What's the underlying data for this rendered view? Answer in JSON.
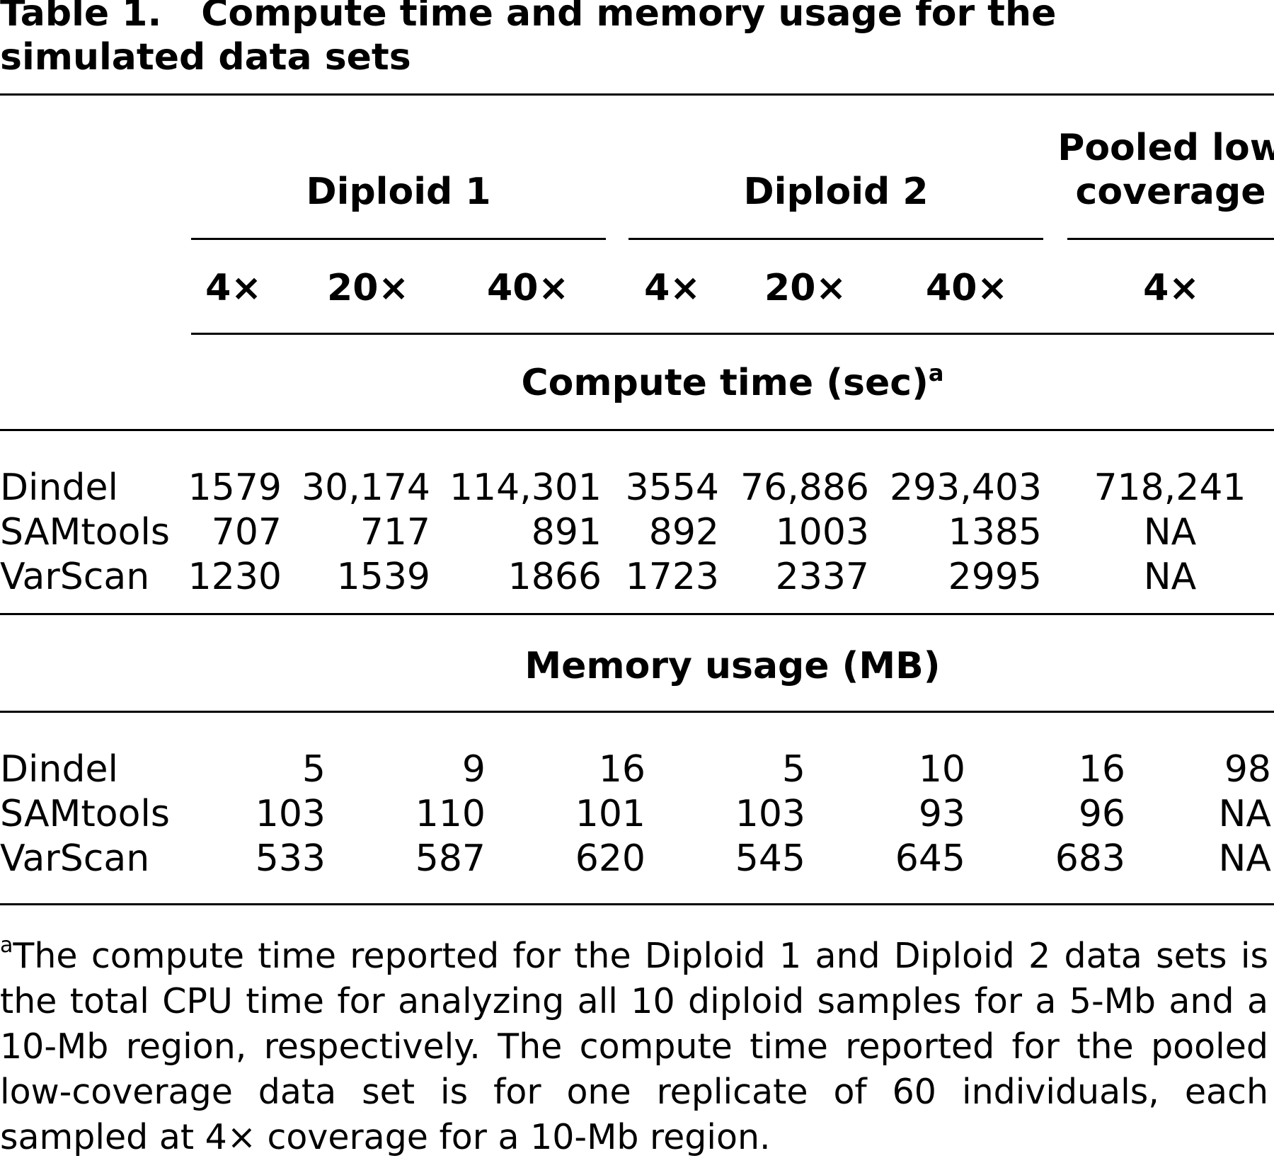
{
  "table": {
    "label": "Table 1.",
    "caption": "Compute time and memory usage for the simulated data sets",
    "group_headers": [
      "Diploid 1",
      "Diploid 2",
      "Pooled low coverage"
    ],
    "columns": [
      "4×",
      "20×",
      "40×",
      "4×",
      "20×",
      "40×",
      "4×"
    ],
    "sections": [
      {
        "title": "Compute time (sec)",
        "title_note": "a",
        "rows": [
          {
            "label": "Dindel",
            "values": [
              "1579",
              "30,174",
              "114,301",
              "3554",
              "76,886",
              "293,403",
              "718,241"
            ]
          },
          {
            "label": "SAMtools",
            "values": [
              "707",
              "717",
              "891",
              "892",
              "1003",
              "1385",
              "NA"
            ]
          },
          {
            "label": "VarScan",
            "values": [
              "1230",
              "1539",
              "1866",
              "1723",
              "2337",
              "2995",
              "NA"
            ]
          }
        ]
      },
      {
        "title": "Memory usage (MB)",
        "rows": [
          {
            "label": "Dindel",
            "values": [
              "5",
              "9",
              "16",
              "5",
              "10",
              "16",
              "98"
            ]
          },
          {
            "label": "SAMtools",
            "values": [
              "103",
              "110",
              "101",
              "103",
              "93",
              "96",
              "NA"
            ]
          },
          {
            "label": "VarScan",
            "values": [
              "533",
              "587",
              "620",
              "545",
              "645",
              "683",
              "NA"
            ]
          }
        ]
      }
    ],
    "footnote": {
      "marker": "a",
      "text": "The compute time reported for the Diploid 1 and Diploid 2 data sets is the total CPU time for analyzing all 10 diploid samples for a 5-Mb and a 10-Mb region, respectively. The compute time reported for the pooled low-coverage data set is for one replicate of 60 individuals, each sampled at 4× coverage for a 10-Mb region."
    }
  }
}
